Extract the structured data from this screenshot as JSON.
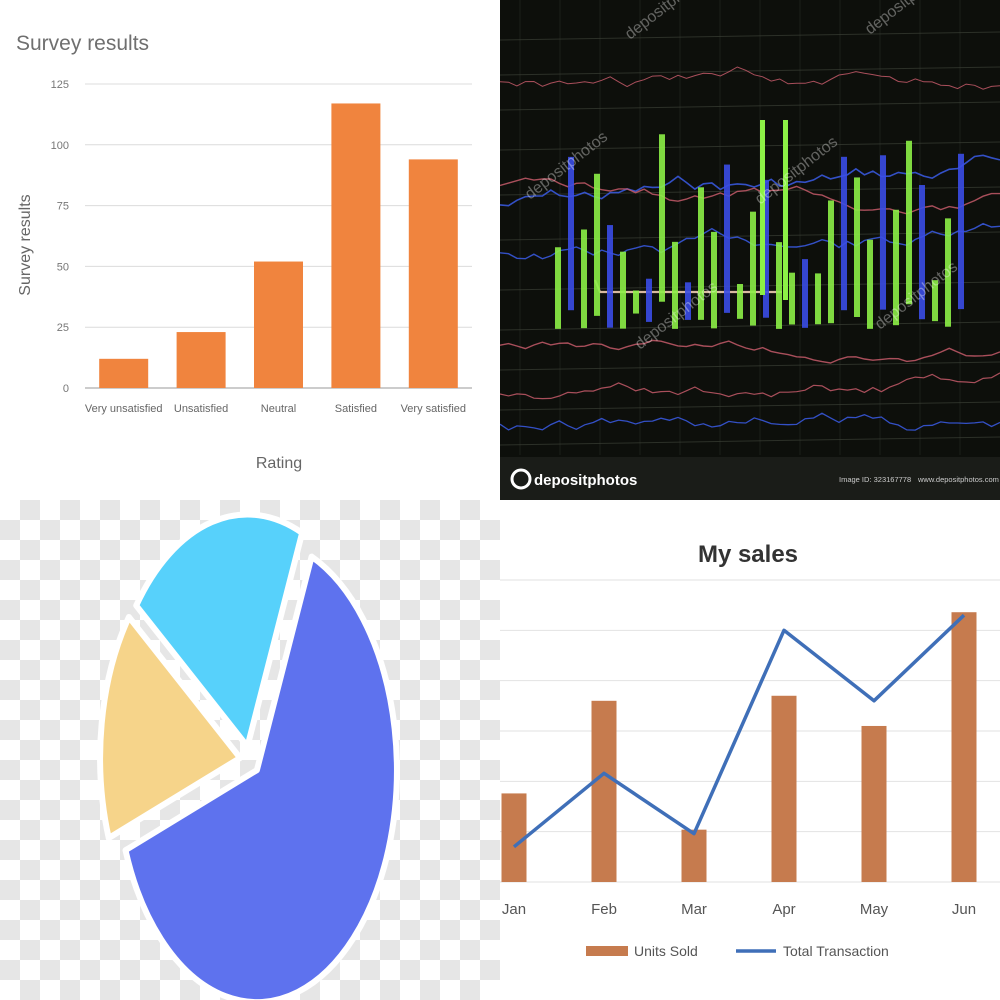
{
  "chart_data": [
    {
      "type": "bar",
      "title": "Survey results",
      "xlabel": "Rating",
      "ylabel": "Survey results",
      "categories": [
        "Very unsatisfied",
        "Unsatisfied",
        "Neutral",
        "Satisfied",
        "Very satisfied"
      ],
      "values": [
        12,
        23,
        52,
        117,
        94
      ],
      "ylim": [
        0,
        125
      ],
      "yticks": [
        0,
        25,
        50,
        75,
        100,
        125
      ],
      "grid": true,
      "color": "#f0843e"
    },
    {
      "type": "line",
      "title": "",
      "grid": true,
      "watermark": "depositphotos",
      "footer": {
        "brand": "depositphotos",
        "image_id": "Image ID: 323167778",
        "site": "www.depositphotos.com"
      },
      "colors": {
        "background": "#0d0f0b",
        "candle_up": "#8cf046",
        "candle_down": "#3a4de6",
        "line_blue": "#3b5ce8",
        "line_red": "#c65b6a",
        "line_beige": "#d8b9a0",
        "grid": "#3a3f35"
      }
    },
    {
      "type": "pie",
      "title": "",
      "values": [
        63,
        16,
        21
      ],
      "colors": [
        "#5e72ee",
        "#f6d48a",
        "#57d1fb"
      ],
      "legend": "none"
    },
    {
      "type": "bar",
      "title": "My sales",
      "categories": [
        "Jan",
        "Feb",
        "Mar",
        "Apr",
        "May",
        "Jun"
      ],
      "series": [
        {
          "name": "Units Sold",
          "kind": "bar",
          "values": [
            88,
            180,
            52,
            185,
            155,
            268
          ],
          "color": "#c67b4e"
        },
        {
          "name": "Total Transaction",
          "kind": "line",
          "values": [
            35,
            108,
            48,
            250,
            180,
            265
          ],
          "color": "#3f6fb8"
        }
      ],
      "ylim": [
        0,
        300
      ],
      "grid": true,
      "legend": "bottom"
    }
  ]
}
